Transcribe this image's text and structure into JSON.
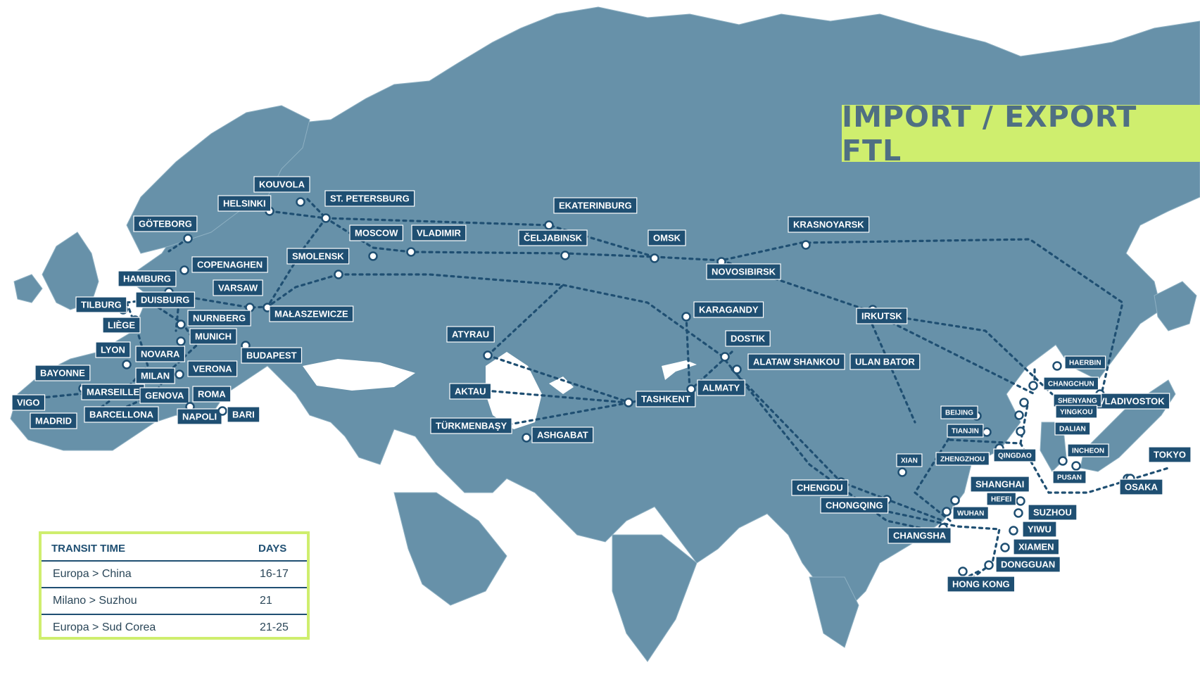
{
  "title": "IMPORT / EXPORT FTL",
  "colors": {
    "land": "#6791a9",
    "sea": "#ffffff",
    "route": "#1f4f72",
    "label_bg": "#1f4f72",
    "accent": "#cfee6e"
  },
  "cities": [
    {
      "name": "KOUVOLA",
      "size": "l"
    },
    {
      "name": "HELSINKI",
      "size": "l"
    },
    {
      "name": "ST. PETERSBURG",
      "size": "l"
    },
    {
      "name": "GÖTEBORG",
      "size": "l"
    },
    {
      "name": "MOSCOW",
      "size": "l"
    },
    {
      "name": "VLADIMIR",
      "size": "l"
    },
    {
      "name": "EKATERINBURG",
      "size": "l"
    },
    {
      "name": "ČELJABINSK",
      "size": "l"
    },
    {
      "name": "OMSK",
      "size": "l"
    },
    {
      "name": "KRASNOYARSK",
      "size": "l"
    },
    {
      "name": "NOVOSIBIRSK",
      "size": "l"
    },
    {
      "name": "SMOLENSK",
      "size": "l"
    },
    {
      "name": "COPENAGHEN",
      "size": "l"
    },
    {
      "name": "HAMBURG",
      "size": "l"
    },
    {
      "name": "VARSAW",
      "size": "l"
    },
    {
      "name": "TILBURG",
      "size": "l"
    },
    {
      "name": "DUISBURG",
      "size": "l"
    },
    {
      "name": "MAŁASZEWICZE",
      "size": "l"
    },
    {
      "name": "LIÈGE",
      "size": "l"
    },
    {
      "name": "NURNBERG",
      "size": "l"
    },
    {
      "name": "MUNICH",
      "size": "l"
    },
    {
      "name": "LYON",
      "size": "l"
    },
    {
      "name": "NOVARA",
      "size": "l"
    },
    {
      "name": "BUDAPEST",
      "size": "l"
    },
    {
      "name": "BAYONNE",
      "size": "l"
    },
    {
      "name": "MILAN",
      "size": "l"
    },
    {
      "name": "VERONA",
      "size": "l"
    },
    {
      "name": "MARSEILLE",
      "size": "l"
    },
    {
      "name": "GENOVA",
      "size": "l"
    },
    {
      "name": "ROMA",
      "size": "l"
    },
    {
      "name": "VIGO",
      "size": "l"
    },
    {
      "name": "BARCELLONA",
      "size": "l"
    },
    {
      "name": "NAPOLI",
      "size": "l"
    },
    {
      "name": "BARI",
      "size": "l"
    },
    {
      "name": "MADRID",
      "size": "l"
    },
    {
      "name": "ATYRAU",
      "size": "l"
    },
    {
      "name": "AKTAU",
      "size": "l"
    },
    {
      "name": "TÜRKMENBAŞY",
      "size": "l"
    },
    {
      "name": "ASHGABAT",
      "size": "l"
    },
    {
      "name": "TASHKENT",
      "size": "l"
    },
    {
      "name": "KARAGANDY",
      "size": "l"
    },
    {
      "name": "DOSTIK",
      "size": "l"
    },
    {
      "name": "ALATAW SHANKOU",
      "size": "l"
    },
    {
      "name": "ALMATY",
      "size": "l"
    },
    {
      "name": "IRKUTSK",
      "size": "l"
    },
    {
      "name": "ULAN BATOR",
      "size": "l"
    },
    {
      "name": "HAERBIN",
      "size": "s"
    },
    {
      "name": "CHANGCHUN",
      "size": "s"
    },
    {
      "name": "VLADIVOSTOK",
      "size": "l"
    },
    {
      "name": "SHENYANG",
      "size": "s"
    },
    {
      "name": "YINGKOU",
      "size": "s"
    },
    {
      "name": "BEIJING",
      "size": "s"
    },
    {
      "name": "TIANJIN",
      "size": "s"
    },
    {
      "name": "DALIAN",
      "size": "s"
    },
    {
      "name": "QINGDAO",
      "size": "s"
    },
    {
      "name": "INCHEON",
      "size": "s"
    },
    {
      "name": "TOKYO",
      "size": "l"
    },
    {
      "name": "PUSAN",
      "size": "s"
    },
    {
      "name": "XIAN",
      "size": "s"
    },
    {
      "name": "ZHENGZHOU",
      "size": "s"
    },
    {
      "name": "OSAKA",
      "size": "l"
    },
    {
      "name": "CHENGDU",
      "size": "l"
    },
    {
      "name": "SHANGHAI",
      "size": "l"
    },
    {
      "name": "HEFEI",
      "size": "s"
    },
    {
      "name": "CHONGQING",
      "size": "l"
    },
    {
      "name": "WUHAN",
      "size": "s"
    },
    {
      "name": "SUZHOU",
      "size": "l"
    },
    {
      "name": "YIWU",
      "size": "l"
    },
    {
      "name": "CHANGSHA",
      "size": "l"
    },
    {
      "name": "XIAMEN",
      "size": "l"
    },
    {
      "name": "DONGGUAN",
      "size": "l"
    },
    {
      "name": "HONG KONG",
      "size": "l"
    }
  ],
  "transit": {
    "header_route": "TRANSIT TIME",
    "header_days": "DAYS",
    "rows": [
      {
        "route": "Europa > China",
        "days": "16-17"
      },
      {
        "route": "Milano > Suzhou",
        "days": "21"
      },
      {
        "route": "Europa > Sud Corea",
        "days": "21-25"
      }
    ]
  }
}
